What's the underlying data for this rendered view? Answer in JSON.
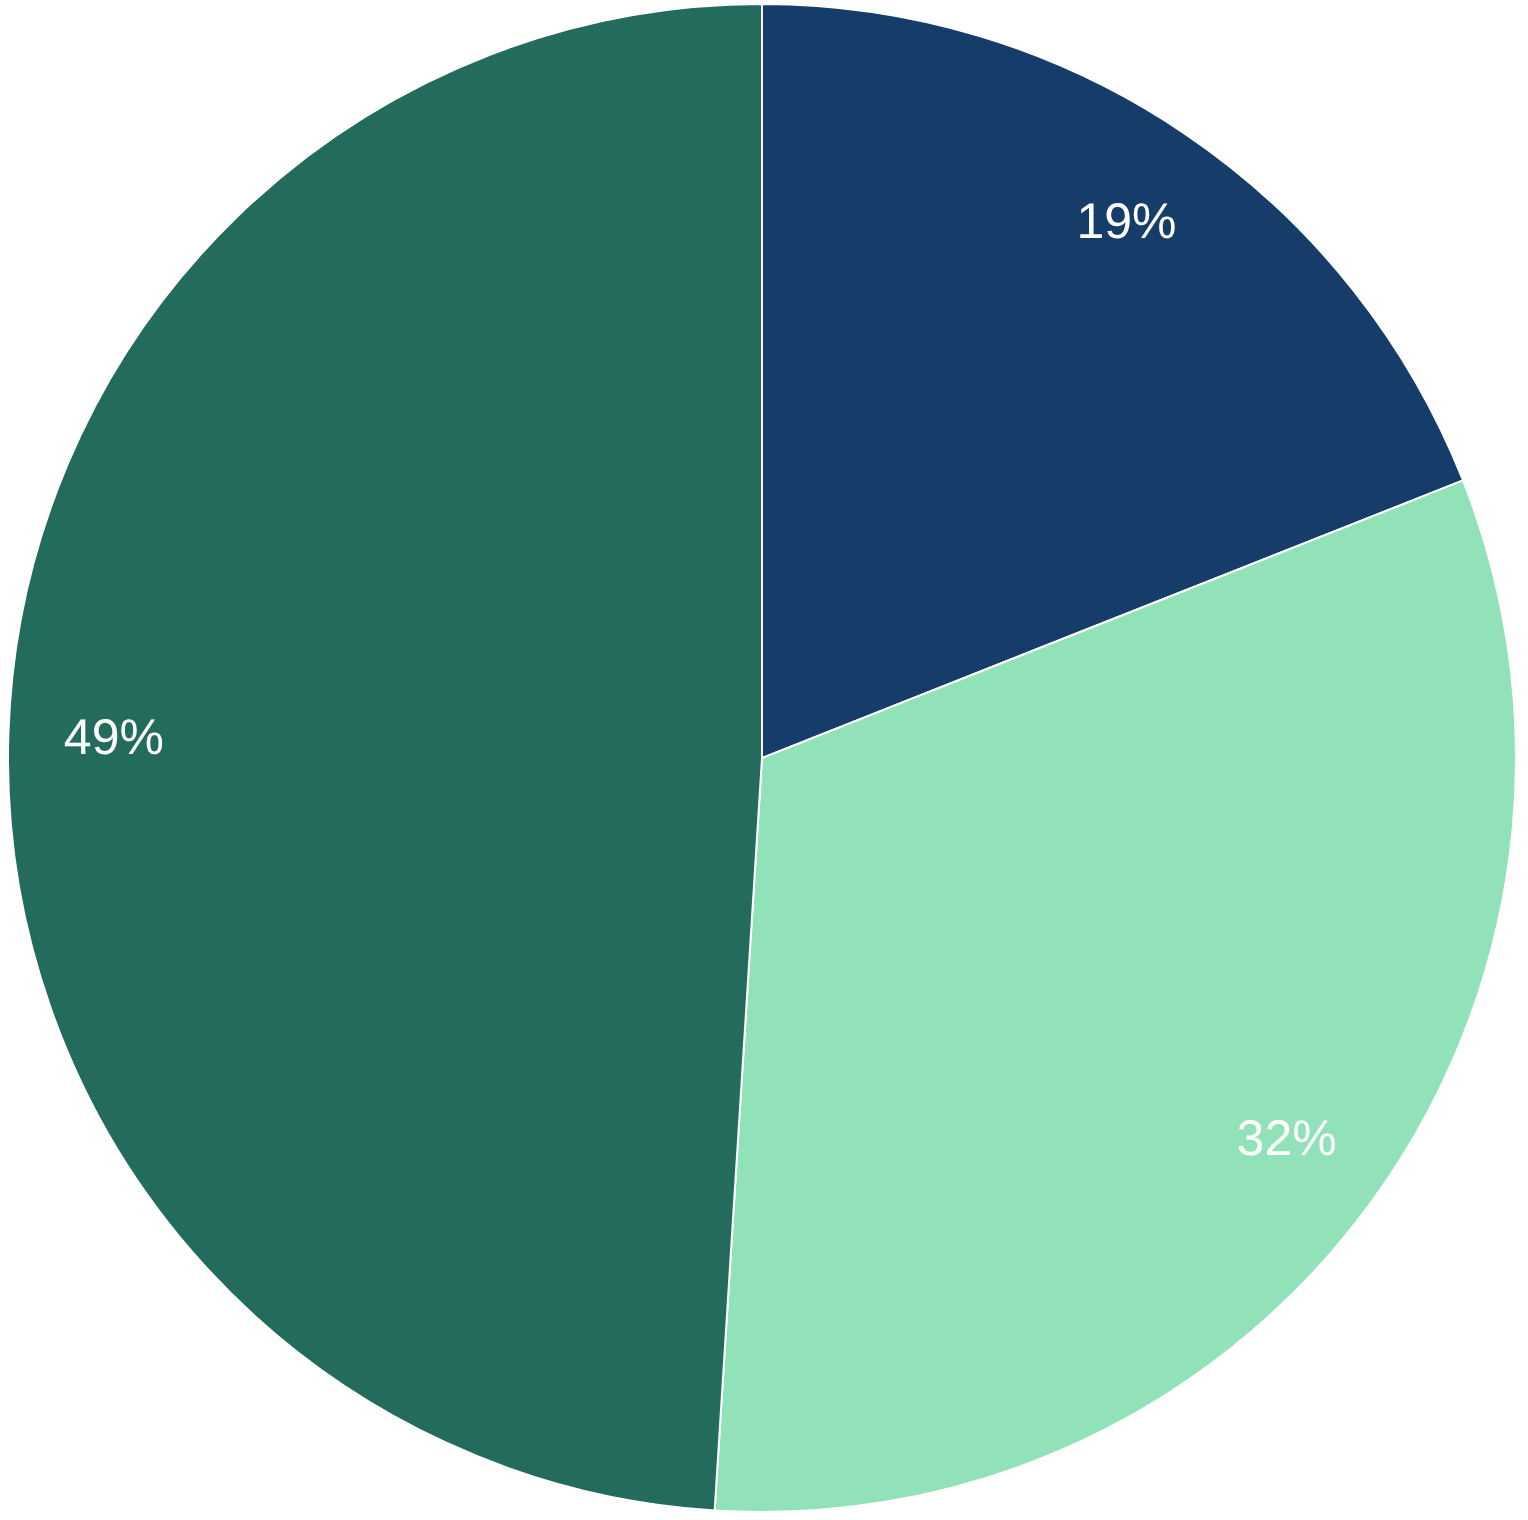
{
  "chart_data": {
    "type": "pie",
    "categories": [
      null,
      null,
      null
    ],
    "values": [
      19,
      32,
      49
    ],
    "colors": [
      "#163d69",
      "#91e2b8",
      "#236b5c"
    ],
    "value_labels": [
      "19%",
      "32%",
      "49%"
    ]
  }
}
